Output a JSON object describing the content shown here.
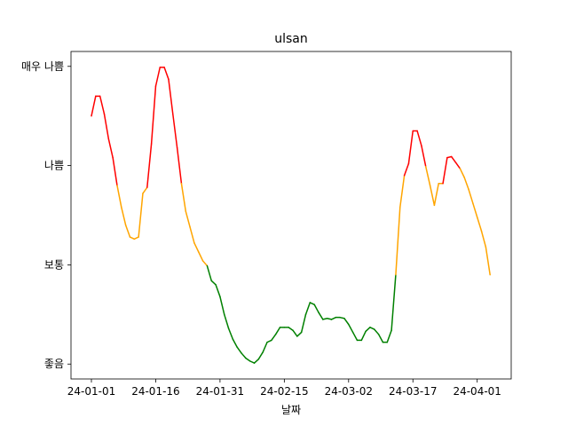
{
  "chart_data": {
    "type": "line",
    "title": "ulsan",
    "xlabel": "날짜",
    "ylabel": "",
    "x_tick_labels": [
      "24-01-01",
      "24-01-16",
      "24-01-31",
      "24-02-15",
      "24-03-02",
      "24-03-17",
      "24-04-01"
    ],
    "y_tick_labels": [
      "좋음",
      "보통",
      "나쁨",
      "매우 나쁨"
    ],
    "y_tick_values": [
      0,
      1,
      2,
      3
    ],
    "ylim": [
      -0.15,
      3.15
    ],
    "grid": false,
    "legend": "none",
    "colors": {
      "good": "green",
      "normal": "orange",
      "bad": "red"
    },
    "start_date": "2024-01-01",
    "series": [
      {
        "values": [
          2.5,
          2.7,
          2.7,
          2.52,
          2.27,
          2.08,
          1.8,
          1.58,
          1.4,
          1.28,
          1.26,
          1.28,
          1.72,
          1.78,
          2.22,
          2.8,
          2.99,
          2.99,
          2.87,
          2.52,
          2.18,
          1.82,
          1.54,
          1.38,
          1.22,
          1.13,
          1.04,
          0.99,
          0.84,
          0.8,
          0.68,
          0.5,
          0.36,
          0.25,
          0.17,
          0.11,
          0.06,
          0.03,
          0.01,
          0.05,
          0.12,
          0.22,
          0.24,
          0.3,
          0.37,
          0.37,
          0.37,
          0.34,
          0.28,
          0.32,
          0.5,
          0.62,
          0.6,
          0.52,
          0.45,
          0.46,
          0.45,
          0.47,
          0.47,
          0.46,
          0.4,
          0.32,
          0.24,
          0.24,
          0.33,
          0.37,
          0.35,
          0.3,
          0.22,
          0.22,
          0.34,
          0.9,
          1.58,
          1.9,
          2.02,
          2.35,
          2.35,
          2.2,
          1.99,
          1.8,
          1.6,
          1.82,
          1.82,
          2.08,
          2.09,
          2.03,
          1.97,
          1.88,
          1.76,
          1.62,
          1.48,
          1.34,
          1.18,
          0.9
        ]
      }
    ]
  }
}
